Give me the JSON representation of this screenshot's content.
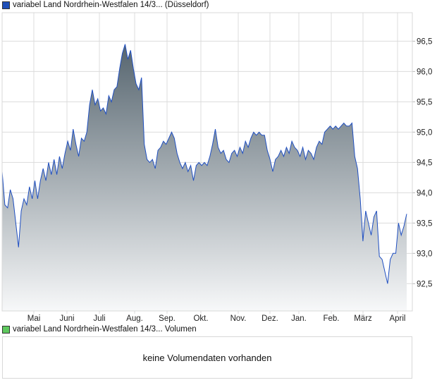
{
  "legend_main": {
    "label": "variabel Land Nordrhein-Westfalen 14/3... (Düsseldorf)",
    "color": "#1f4fb8"
  },
  "legend_volume": {
    "label": "variabel Land Nordrhein-Westfalen 14/3... Volumen",
    "color": "#5ec85e"
  },
  "volume_message": "keine Volumendaten vorhanden",
  "chart_data": {
    "type": "area",
    "title": "variabel Land Nordrhein-Westfalen 14/3... (Düsseldorf)",
    "xlabel": "",
    "ylabel": "",
    "ylim": [
      92.05,
      96.97
    ],
    "y_ticks": [
      92.5,
      93.0,
      93.5,
      94.0,
      94.5,
      95.0,
      95.5,
      96.0,
      96.5
    ],
    "y_tick_labels": [
      "92,5",
      "93,0",
      "93,5",
      "94,0",
      "94,5",
      "95,0",
      "95,5",
      "96,0",
      "96,5"
    ],
    "x_tick_labels": [
      "Mai",
      "Juni",
      "Juli",
      "Aug.",
      "Sep.",
      "Okt.",
      "Nov.",
      "Dez.",
      "Jan.",
      "Feb.",
      "März",
      "April"
    ],
    "grid": true,
    "line_color": "#1f4fc1",
    "values": [
      94.35,
      93.8,
      93.75,
      94.05,
      93.9,
      93.5,
      93.1,
      93.7,
      93.9,
      93.8,
      94.1,
      93.9,
      94.2,
      93.9,
      94.2,
      94.4,
      94.2,
      94.5,
      94.3,
      94.55,
      94.3,
      94.6,
      94.4,
      94.65,
      94.85,
      94.7,
      95.05,
      94.8,
      94.6,
      94.9,
      94.85,
      95.0,
      95.45,
      95.7,
      95.45,
      95.55,
      95.35,
      95.4,
      95.3,
      95.6,
      95.5,
      95.7,
      95.75,
      96.05,
      96.3,
      96.45,
      96.2,
      96.35,
      96.05,
      95.8,
      95.7,
      95.9,
      94.8,
      94.55,
      94.5,
      94.55,
      94.4,
      94.7,
      94.75,
      94.85,
      94.8,
      94.9,
      95.0,
      94.9,
      94.65,
      94.5,
      94.4,
      94.5,
      94.35,
      94.45,
      94.2,
      94.45,
      94.5,
      94.45,
      94.5,
      94.45,
      94.6,
      94.8,
      95.05,
      94.75,
      94.65,
      94.7,
      94.55,
      94.5,
      94.65,
      94.7,
      94.6,
      94.75,
      94.65,
      94.85,
      94.75,
      94.9,
      95.0,
      94.95,
      95.0,
      94.95,
      94.95,
      94.7,
      94.55,
      94.35,
      94.55,
      94.6,
      94.7,
      94.6,
      94.75,
      94.65,
      94.85,
      94.75,
      94.7,
      94.6,
      94.75,
      94.55,
      94.7,
      94.65,
      94.55,
      94.75,
      94.85,
      94.8,
      95.0,
      95.05,
      95.1,
      95.05,
      95.1,
      95.05,
      95.1,
      95.15,
      95.1,
      95.1,
      95.15,
      94.6,
      94.4,
      93.9,
      93.2,
      93.7,
      93.5,
      93.3,
      93.6,
      93.7,
      92.95,
      92.9,
      92.7,
      92.5,
      92.9,
      93.0,
      93.0,
      93.5,
      93.3,
      93.45,
      93.65
    ]
  }
}
